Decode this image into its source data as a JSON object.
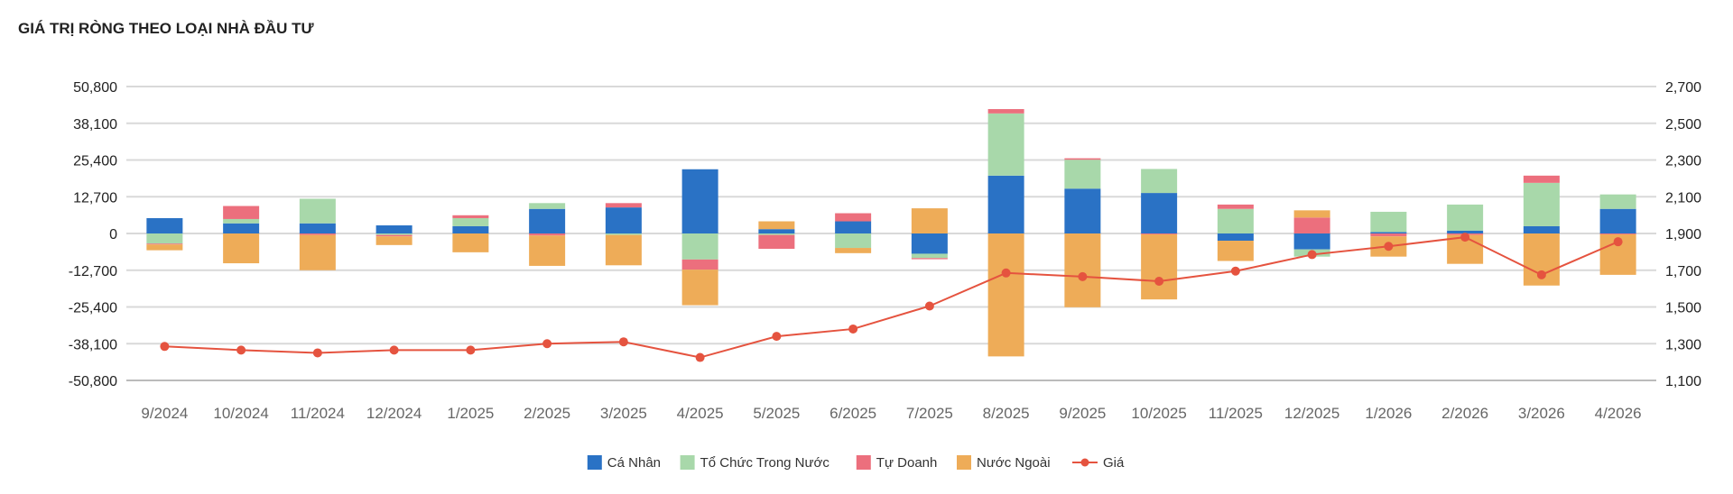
{
  "chart_data": {
    "type": "bar",
    "title": "GIÁ TRỊ RÒNG THEO LOẠI NHÀ ĐẦU TƯ",
    "stacked": true,
    "categories": [
      "9/2024",
      "10/2024",
      "11/2024",
      "12/2024",
      "1/2025",
      "2/2025",
      "3/2025",
      "4/2025",
      "5/2025",
      "6/2025",
      "7/2025",
      "8/2025",
      "9/2025",
      "10/2025",
      "11/2025",
      "12/2025",
      "1/2026",
      "2/2026",
      "3/2026",
      "4/2026"
    ],
    "ylim_left": [
      -50800,
      50800
    ],
    "yticks_left": [
      "50,800",
      "38,100",
      "25,400",
      "12,700",
      "0",
      "-12,700",
      "-25,400",
      "-38,100",
      "-50,800"
    ],
    "ylim_right": [
      1100,
      2700
    ],
    "yticks_right": [
      "2,700",
      "2,500",
      "2,300",
      "2,100",
      "1,900",
      "1,700",
      "1,500",
      "1,300",
      "1,100"
    ],
    "grid": true,
    "legend_position": "bottom",
    "series": [
      {
        "name": "Cá Nhân",
        "color": "#2a72c5",
        "values": [
          5300,
          3500,
          3500,
          2800,
          2500,
          8500,
          9000,
          22200,
          1500,
          4200,
          -7000,
          20000,
          15500,
          14000,
          -2500,
          -5500,
          500,
          1000,
          2500,
          8500
        ]
      },
      {
        "name": "Tổ Chức Trong Nước",
        "color": "#a8d8aa",
        "values": [
          -3500,
          1500,
          8500,
          -500,
          2800,
          2000,
          -500,
          -9000,
          -500,
          -5000,
          -1500,
          21500,
          10000,
          8300,
          8500,
          -2500,
          7000,
          9000,
          15000,
          5000
        ]
      },
      {
        "name": "Tự Doanh",
        "color": "#ec6f7d",
        "values": [
          -300,
          4500,
          -500,
          -500,
          1000,
          -700,
          1500,
          -3500,
          -4800,
          2800,
          -400,
          1500,
          500,
          -300,
          1500,
          5500,
          -1000,
          -500,
          2500,
          -300
        ]
      },
      {
        "name": "Nước Ngoài",
        "color": "#eeac58",
        "values": [
          -2000,
          -10300,
          -12200,
          -3000,
          -6500,
          -10500,
          -10500,
          -12300,
          2700,
          -1800,
          8700,
          -42500,
          -25500,
          -22500,
          -7000,
          2500,
          -7000,
          -10000,
          -18000,
          -14000
        ]
      }
    ],
    "line": {
      "name": "Giá",
      "color": "#e5533f",
      "axis": "right",
      "values": [
        1285,
        1265,
        1250,
        1265,
        1265,
        1300,
        1310,
        1225,
        1340,
        1380,
        1505,
        1685,
        1665,
        1640,
        1695,
        1785,
        1830,
        1880,
        1675,
        1855
      ]
    }
  }
}
